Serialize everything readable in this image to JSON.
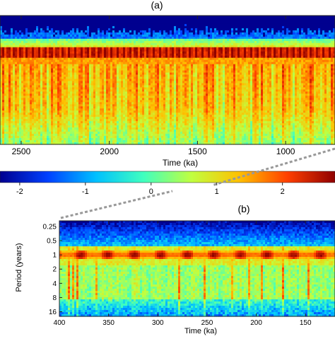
{
  "panel_a": {
    "label": "(a)"
  },
  "panel_b": {
    "label": "(b)"
  },
  "colorbar": {
    "ticks": [
      "-2",
      "-1",
      "0",
      "1",
      "2"
    ],
    "tick_values": [
      -2,
      -1,
      0,
      1,
      2
    ],
    "range": [
      -2.3,
      2.8
    ],
    "colormap": [
      "#00008f",
      "#0040ff",
      "#00c0ff",
      "#40ffbf",
      "#c0ff40",
      "#ffc000",
      "#ff4000",
      "#8f0000"
    ]
  },
  "chart_data": [
    {
      "type": "heatmap",
      "title": "(a)",
      "xlabel": "Time (ka)",
      "ylabel": "",
      "x_reversed": true,
      "xlim": [
        2620,
        720
      ],
      "xticks": [
        2500,
        2000,
        1500,
        1000
      ],
      "xtick_labels": [
        "2500",
        "2000",
        "1500",
        "1000"
      ],
      "bands": [
        {
          "feature": "high-frequency noise band",
          "level": "blue (about -1.5)"
        },
        {
          "feature": "dominant periodic band",
          "level": "red (about 2.5)"
        },
        {
          "feature": "low-frequency band",
          "level": "orange/yellow (about 1 to 1.5)"
        }
      ]
    },
    {
      "type": "heatmap",
      "title": "(b)",
      "xlabel": "Time (ka)",
      "ylabel": "Period (years)",
      "x_reversed": true,
      "xlim": [
        400,
        120
      ],
      "xticks": [
        400,
        350,
        300,
        250,
        200,
        150
      ],
      "xtick_labels": [
        "400",
        "350",
        "300",
        "250",
        "200",
        "150"
      ],
      "yscale": "log2",
      "ylim": [
        0.19,
        20
      ],
      "yticks": [
        0.25,
        0.5,
        1,
        2,
        4,
        8,
        16
      ],
      "ytick_labels": [
        "0.25",
        "0.5",
        "1",
        "2",
        "4",
        "8",
        "16"
      ],
      "features": [
        {
          "description": "annual band with ~100 ka modulation",
          "period_years": 1,
          "level": "red (about 2.5 to 3)"
        },
        {
          "description": "sub-annual periods",
          "period_years": 0.3,
          "level": "blue (about -1.5)"
        },
        {
          "description": "multi-year vertical streaks",
          "period_years": 4,
          "level": "orange (about 1.5)"
        }
      ]
    }
  ]
}
